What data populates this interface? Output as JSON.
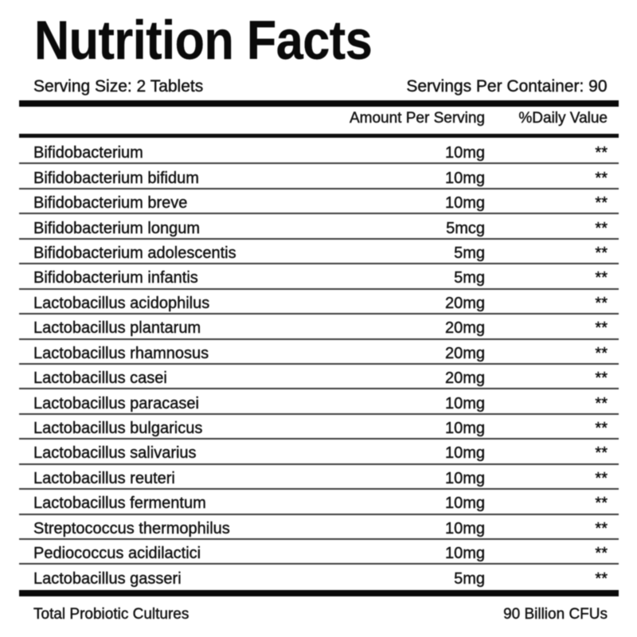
{
  "title": "Nutrition Facts",
  "serving": {
    "size": "Serving Size: 2 Tablets",
    "per_container": "Servings Per Container: 90"
  },
  "columns": {
    "amount": "Amount Per Serving",
    "daily_value": "%Daily Value"
  },
  "rows": [
    {
      "name": "Bifidobacterium",
      "amount": "10mg",
      "daily_value": "**"
    },
    {
      "name": "Bifidobacterium bifidum",
      "amount": "10mg",
      "daily_value": "**"
    },
    {
      "name": "Bifidobacterium breve",
      "amount": "10mg",
      "daily_value": "**"
    },
    {
      "name": "Bifidobacterium longum",
      "amount": "5mcg",
      "daily_value": "**"
    },
    {
      "name": "Bifidobacterium adolescentis",
      "amount": "5mg",
      "daily_value": "**"
    },
    {
      "name": "Bifidobacterium infantis",
      "amount": "5mg",
      "daily_value": "**"
    },
    {
      "name": "Lactobacillus acidophilus",
      "amount": "20mg",
      "daily_value": "**"
    },
    {
      "name": "Lactobacillus plantarum",
      "amount": "20mg",
      "daily_value": "**"
    },
    {
      "name": "Lactobacillus rhamnosus",
      "amount": "20mg",
      "daily_value": "**"
    },
    {
      "name": "Lactobacillus casei",
      "amount": "20mg",
      "daily_value": "**"
    },
    {
      "name": "Lactobacillus paracasei",
      "amount": "10mg",
      "daily_value": "**"
    },
    {
      "name": "Lactobacillus bulgaricus",
      "amount": "10mg",
      "daily_value": "**"
    },
    {
      "name": "Lactobacillus salivarius",
      "amount": "10mg",
      "daily_value": "**"
    },
    {
      "name": "Lactobacillus reuteri",
      "amount": "10mg",
      "daily_value": "**"
    },
    {
      "name": "Lactobacillus fermentum",
      "amount": "10mg",
      "daily_value": "**"
    },
    {
      "name": "Streptococcus thermophilus",
      "amount": "10mg",
      "daily_value": "**"
    },
    {
      "name": "Pediococcus acidilactici",
      "amount": "10mg",
      "daily_value": "**"
    },
    {
      "name": "Lactobacillus gasseri",
      "amount": "5mg",
      "daily_value": "**"
    }
  ],
  "footer": {
    "label": "Total Probiotic Cultures",
    "value": "90 Billion CFUs"
  },
  "colors": {
    "background": "#ffffff",
    "text": "#111111",
    "bar": "#0a0a0a",
    "separator": "#3d3d3d"
  }
}
